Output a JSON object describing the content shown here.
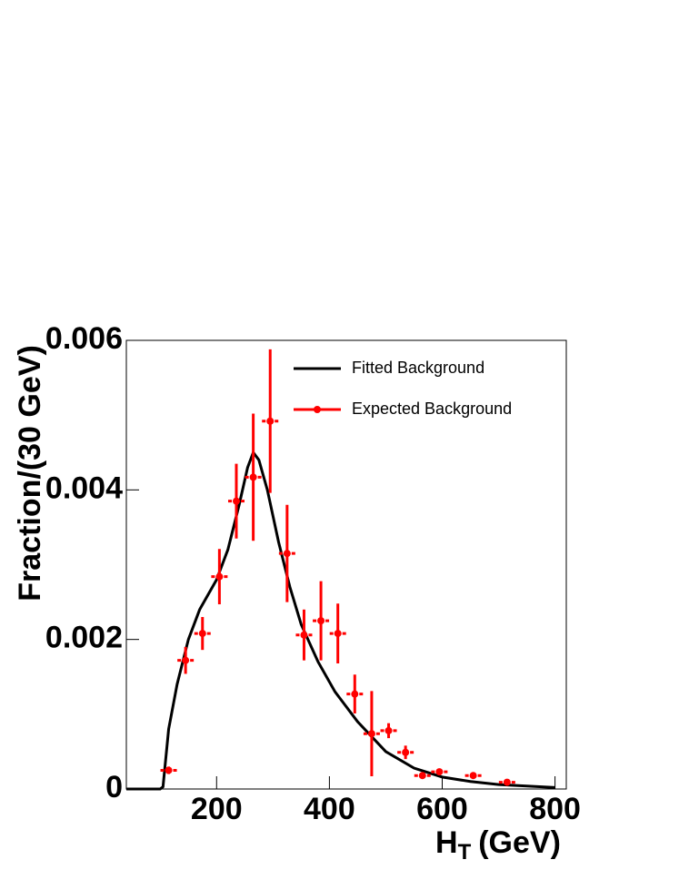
{
  "chart_data": {
    "type": "errorbar-line",
    "ylabel": "Fraction/(30 GeV)",
    "xlabel": {
      "main": "H",
      "sub": "T",
      "rest": "(GeV)"
    },
    "xlim": [
      40,
      820
    ],
    "xticks": [
      200,
      400,
      600,
      800
    ],
    "ylim": [
      0,
      0.006
    ],
    "yticks": [
      0,
      0.002,
      0.004,
      0.006
    ],
    "legend": "upper-right",
    "series": [
      {
        "name": "Fitted Background",
        "color": "#000000",
        "kind": "line",
        "x": [
          40,
          100,
          105,
          115,
          130,
          150,
          170,
          200,
          220,
          240,
          255,
          265,
          275,
          290,
          310,
          330,
          350,
          380,
          410,
          450,
          500,
          550,
          600,
          650,
          700,
          800
        ],
        "values": [
          0,
          0,
          3e-05,
          0.0008,
          0.0014,
          0.002,
          0.0024,
          0.0028,
          0.0032,
          0.0038,
          0.0043,
          0.0045,
          0.0044,
          0.004,
          0.0033,
          0.0027,
          0.0022,
          0.0017,
          0.0013,
          0.0009,
          0.0005,
          0.00028,
          0.00016,
          0.0001,
          6e-05,
          2e-05
        ]
      },
      {
        "name": "Expected Background",
        "color": "#ff0000",
        "kind": "points",
        "x": [
          115,
          145,
          175,
          205,
          235,
          265,
          295,
          325,
          355,
          385,
          415,
          445,
          475,
          505,
          535,
          565,
          595,
          655,
          715
        ],
        "values": [
          0.00025,
          0.00172,
          0.00208,
          0.00284,
          0.00385,
          0.00417,
          0.00492,
          0.00315,
          0.00206,
          0.00225,
          0.00208,
          0.00127,
          0.00074,
          0.00078,
          0.00049,
          0.00018,
          0.00023,
          0.00018,
          9e-05
        ],
        "errors": [
          5e-05,
          0.00018,
          0.00022,
          0.00037,
          0.0005,
          0.00085,
          0.00096,
          0.00065,
          0.00034,
          0.00053,
          0.0004,
          0.00026,
          0.00057,
          0.0001,
          9e-05,
          3e-05,
          3e-05,
          3e-05,
          3e-05
        ]
      }
    ]
  }
}
